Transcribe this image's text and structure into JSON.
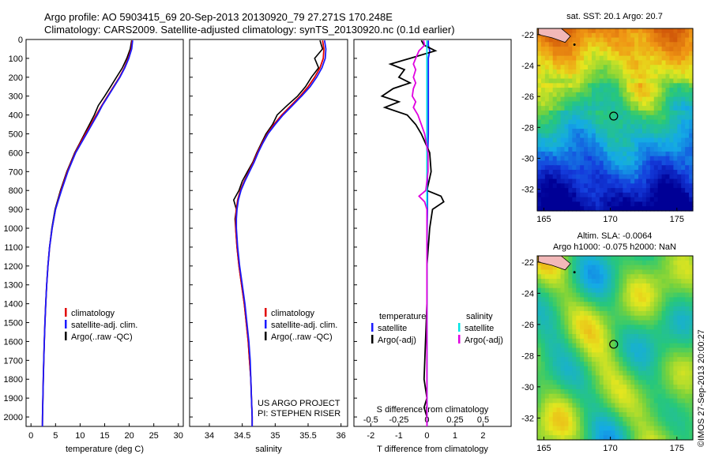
{
  "header": {
    "line1": "Argo profile: AO 5903415_69 20-Sep-2013 20130920_79 27.271S 170.248E",
    "line2": "Climatology: CARS2009. Satellite-adjusted climatology: synTS_20130920.nc (0.1d earlier)"
  },
  "credits": {
    "project": "US ARGO PROJECT",
    "pi": "PI: STEPHEN RISER",
    "imos": "©IMOS 27-Sep-2013 20:00:27"
  },
  "colors": {
    "climatology": "#e00000",
    "satellite": "#1a1aff",
    "argo": "#000000",
    "sal_satellite": "#00e5e5",
    "sal_argo": "#e000e0"
  },
  "chart_data": [
    {
      "type": "line",
      "title": "",
      "xlabel": "temperature (deg C)",
      "ylabel": "",
      "xlim": [
        -1,
        31
      ],
      "ylim": [
        2050,
        0
      ],
      "x_ticks": [
        "0",
        "5",
        "10",
        "15",
        "20",
        "25",
        "30"
      ],
      "y_ticks": [
        "0",
        "100",
        "200",
        "300",
        "400",
        "500",
        "600",
        "700",
        "800",
        "900",
        "1000",
        "1100",
        "1200",
        "1300",
        "1400",
        "1500",
        "1600",
        "1700",
        "1800",
        "1900",
        "2000"
      ],
      "legend": [
        "climatology",
        "satellite-adj. clim.",
        "Argo(..raw -QC)"
      ],
      "depth": [
        5,
        50,
        100,
        150,
        200,
        250,
        300,
        350,
        400,
        450,
        500,
        550,
        600,
        650,
        700,
        800,
        900,
        1000,
        1100,
        1200,
        1300,
        1400,
        1500,
        1600,
        1700,
        1800,
        1900,
        2000,
        2050
      ],
      "series": [
        {
          "name": "climatology",
          "values": [
            20.6,
            20.4,
            19.8,
            19.0,
            18.0,
            16.8,
            15.6,
            14.4,
            13.3,
            12.2,
            11.1,
            10.0,
            9.0,
            8.2,
            7.4,
            6.1,
            5.0,
            4.3,
            3.8,
            3.45,
            3.2,
            3.0,
            2.85,
            2.72,
            2.6,
            2.5,
            2.42,
            2.35,
            2.33
          ]
        },
        {
          "name": "satellite-adj. clim.",
          "values": [
            20.7,
            20.5,
            19.9,
            19.1,
            18.1,
            16.9,
            15.7,
            14.5,
            13.5,
            12.4,
            11.3,
            10.2,
            9.1,
            8.3,
            7.5,
            6.2,
            5.0,
            4.3,
            3.8,
            3.45,
            3.2,
            3.0,
            2.85,
            2.72,
            2.6,
            2.5,
            2.42,
            2.35,
            2.33
          ]
        },
        {
          "name": "Argo(..raw -QC)",
          "values": [
            20.5,
            20.2,
            19.5,
            18.6,
            17.4,
            16.2,
            15.0,
            13.7,
            12.9,
            11.9,
            10.9,
            9.9,
            8.9,
            8.1,
            7.3,
            6.0,
            4.9,
            4.25,
            3.78,
            3.44,
            3.2,
            3.0,
            2.85,
            2.72,
            2.6,
            2.5,
            2.42,
            2.35,
            2.33
          ]
        }
      ]
    },
    {
      "type": "line",
      "title": "",
      "xlabel": "salinity",
      "ylabel": "",
      "xlim": [
        33.7,
        36.1
      ],
      "ylim": [
        2050,
        0
      ],
      "x_ticks": [
        "34",
        "34.5",
        "35",
        "35.5",
        "36"
      ],
      "legend": [
        "climatology",
        "satellite-adj. clim.",
        "Argo(..raw -QC)"
      ],
      "depth": [
        5,
        50,
        100,
        150,
        200,
        250,
        300,
        350,
        400,
        450,
        500,
        550,
        600,
        650,
        700,
        750,
        800,
        850,
        900,
        950,
        1000,
        1100,
        1200,
        1300,
        1400,
        1500,
        1600,
        1700,
        1800,
        1900,
        2000,
        2050
      ],
      "series": [
        {
          "name": "climatology",
          "values": [
            35.72,
            35.74,
            35.73,
            35.68,
            35.6,
            35.5,
            35.38,
            35.24,
            35.1,
            34.98,
            34.88,
            34.8,
            34.73,
            34.67,
            34.6,
            34.53,
            34.47,
            34.43,
            34.41,
            34.4,
            34.4,
            34.42,
            34.45,
            34.49,
            34.53,
            34.56,
            34.59,
            34.61,
            34.63,
            34.64,
            34.65,
            34.65
          ]
        },
        {
          "name": "satellite-adj. clim.",
          "values": [
            35.75,
            35.77,
            35.76,
            35.71,
            35.63,
            35.53,
            35.4,
            35.26,
            35.12,
            35.0,
            34.89,
            34.81,
            34.74,
            34.68,
            34.61,
            34.54,
            34.48,
            34.44,
            34.42,
            34.41,
            34.41,
            34.43,
            34.46,
            34.5,
            34.54,
            34.57,
            34.6,
            34.62,
            34.63,
            34.64,
            34.65,
            34.65
          ]
        },
        {
          "name": "Argo(..raw -QC)",
          "values": [
            35.68,
            35.72,
            35.6,
            35.66,
            35.55,
            35.46,
            35.34,
            35.18,
            35.03,
            34.96,
            34.86,
            34.79,
            34.72,
            34.66,
            34.58,
            34.5,
            34.45,
            34.37,
            34.41,
            34.39,
            34.4,
            34.42,
            34.45,
            34.49,
            34.53,
            34.56,
            34.59,
            34.61,
            34.63,
            34.64,
            34.65,
            34.65
          ]
        }
      ]
    },
    {
      "type": "line",
      "title": "",
      "xlabel": "T difference from climatology",
      "x2label": "S difference from climatology",
      "ylabel": "",
      "xlim": [
        -2.6,
        3.0
      ],
      "ylim": [
        2050,
        0
      ],
      "x_ticks": [
        "-2",
        "-1",
        "0",
        "1",
        "2"
      ],
      "x2_ticks": [
        "-0.5",
        "-0.25",
        "0",
        "0.25",
        "0.5"
      ],
      "x2lim": [
        -0.65,
        0.75
      ],
      "legend": [
        "temperature",
        "satellite",
        "Argo(-adj)",
        "salinity",
        "satellite",
        "Argo(-adj)"
      ],
      "depth": [
        5,
        30,
        60,
        100,
        130,
        160,
        200,
        230,
        260,
        300,
        330,
        360,
        400,
        450,
        500,
        600,
        700,
        800,
        830,
        860,
        900,
        1000,
        1200,
        1400,
        1600,
        1800,
        1900,
        1950,
        2000,
        2050
      ],
      "series": [
        {
          "name": "temperature satellite",
          "values": [
            0.05,
            0.05,
            0.1,
            0.05,
            0.05,
            0.05,
            0.05,
            0.05,
            0.05,
            0.05,
            0.05,
            0.05,
            0.05,
            0.05,
            0.05,
            0.03,
            0.02,
            0.02,
            0.02,
            0.02,
            0.02,
            0.01,
            0.0,
            0.0,
            0.0,
            0.0,
            0.0,
            0.0,
            0.0,
            0.0
          ]
        },
        {
          "name": "temperature Argo(-adj)",
          "values": [
            -0.2,
            -0.1,
            0.3,
            -0.6,
            -1.3,
            -0.8,
            -1.0,
            -0.6,
            -1.2,
            -1.6,
            -1.0,
            -1.5,
            -0.7,
            -0.4,
            -0.2,
            0.1,
            0.15,
            0.0,
            0.5,
            0.6,
            0.2,
            0.1,
            0.0,
            0.0,
            -0.05,
            -0.1,
            0.0,
            -0.1,
            0.0,
            0.0
          ]
        },
        {
          "name": "salinity satellite",
          "values": [
            0.0,
            0.0,
            0.0,
            0.0,
            0.0,
            0.0,
            0.0,
            0.0,
            0.0,
            0.0,
            0.0,
            0.0,
            0.0,
            0.0,
            0.0,
            0.0,
            0.0,
            0.0,
            0.0,
            0.0,
            0.0,
            0.0,
            0.0,
            0.0,
            0.0,
            0.0,
            0.0,
            0.0,
            0.0,
            0.0
          ]
        },
        {
          "name": "salinity Argo(-adj)",
          "values": [
            -0.03,
            -0.02,
            -0.07,
            -0.1,
            -0.12,
            -0.1,
            -0.12,
            -0.1,
            -0.12,
            -0.13,
            -0.1,
            -0.12,
            -0.08,
            -0.05,
            -0.02,
            0.01,
            0.01,
            -0.01,
            -0.07,
            -0.02,
            0.0,
            0.0,
            0.0,
            0.0,
            0.0,
            0.0,
            0.0,
            0.0,
            0.0,
            0.0
          ]
        }
      ]
    },
    {
      "type": "heatmap",
      "title": "sat. SST: 20.1 Argo: 20.7",
      "xlabel": "",
      "ylabel": "",
      "xlim": [
        164.5,
        176.2
      ],
      "ylim": [
        -33.4,
        -21.6
      ],
      "x_ticks": [
        "165",
        "170",
        "175"
      ],
      "y_ticks": [
        "-22",
        "-24",
        "-26",
        "-28",
        "-30",
        "-32"
      ],
      "marker": {
        "lon": 170.25,
        "lat": -27.27
      }
    },
    {
      "type": "heatmap",
      "title": "Altim. SLA: -0.0064",
      "subtitle": "Argo h1000: -0.075 h2000: NaN",
      "xlabel": "",
      "ylabel": "",
      "xlim": [
        164.5,
        176.2
      ],
      "ylim": [
        -33.4,
        -21.6
      ],
      "x_ticks": [
        "165",
        "170",
        "175"
      ],
      "y_ticks": [
        "-22",
        "-24",
        "-26",
        "-28",
        "-30",
        "-32"
      ],
      "marker": {
        "lon": 170.25,
        "lat": -27.27
      }
    }
  ]
}
